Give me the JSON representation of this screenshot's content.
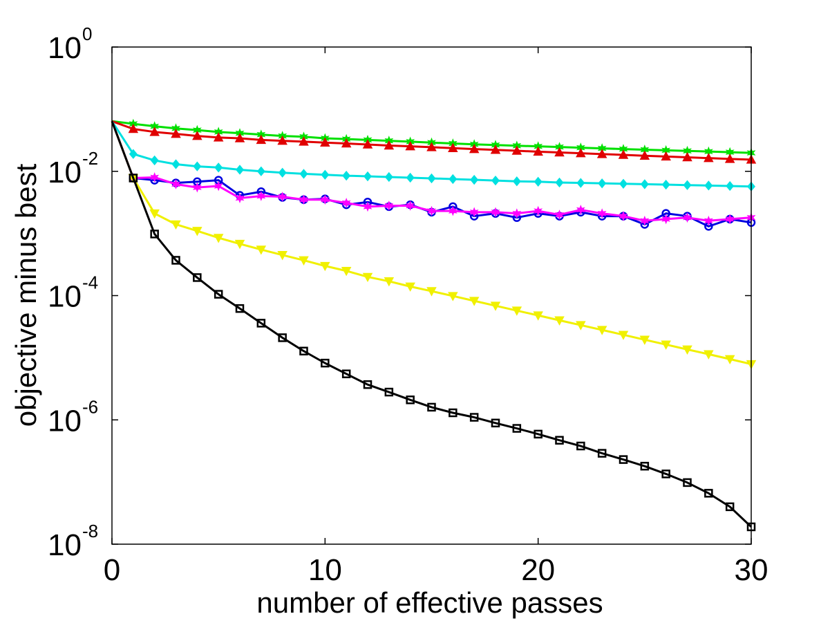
{
  "chart_data": {
    "type": "line",
    "title": "",
    "xlabel": "number of effective passes",
    "ylabel": "objective minus best",
    "xlim": [
      0,
      30
    ],
    "ylim": [
      1e-08,
      1
    ],
    "yscale": "log",
    "x_ticks": [
      0,
      10,
      20,
      30
    ],
    "y_ticks": [
      {
        "value": 1,
        "base": "10",
        "exp": "0"
      },
      {
        "value": 0.01,
        "base": "10",
        "exp": "-2"
      },
      {
        "value": 0.0001,
        "base": "10",
        "exp": "-4"
      },
      {
        "value": 1e-06,
        "base": "10",
        "exp": "-6"
      },
      {
        "value": 1e-08,
        "base": "10",
        "exp": "-8"
      }
    ],
    "grid": false,
    "series": [
      {
        "name": "green-star",
        "color": "#00e000",
        "marker": "star",
        "x": [
          0,
          1,
          2,
          3,
          4,
          5,
          6,
          7,
          8,
          9,
          10,
          11,
          12,
          13,
          14,
          15,
          16,
          17,
          18,
          19,
          20,
          21,
          22,
          23,
          24,
          25,
          26,
          27,
          28,
          29,
          30
        ],
        "values": [
          0.064,
          0.058,
          0.053,
          0.049,
          0.046,
          0.043,
          0.041,
          0.039,
          0.037,
          0.036,
          0.034,
          0.033,
          0.032,
          0.031,
          0.03,
          0.029,
          0.028,
          0.0272,
          0.0265,
          0.0258,
          0.0252,
          0.0246,
          0.024,
          0.0234,
          0.0228,
          0.0223,
          0.0218,
          0.0213,
          0.0208,
          0.0203,
          0.0198
        ]
      },
      {
        "name": "red-triangle",
        "color": "#e00000",
        "marker": "triangle-up",
        "x": [
          0,
          1,
          2,
          3,
          4,
          5,
          6,
          7,
          8,
          9,
          10,
          11,
          12,
          13,
          14,
          15,
          16,
          17,
          18,
          19,
          20,
          21,
          22,
          23,
          24,
          25,
          26,
          27,
          28,
          29,
          30
        ],
        "values": [
          0.064,
          0.048,
          0.043,
          0.04,
          0.037,
          0.035,
          0.034,
          0.032,
          0.031,
          0.03,
          0.029,
          0.028,
          0.027,
          0.026,
          0.0252,
          0.0244,
          0.0236,
          0.0228,
          0.0221,
          0.0214,
          0.0207,
          0.0201,
          0.0195,
          0.0189,
          0.0184,
          0.0178,
          0.0173,
          0.0168,
          0.0163,
          0.0158,
          0.0154
        ]
      },
      {
        "name": "cyan-diamond",
        "color": "#00e0e0",
        "marker": "diamond",
        "x": [
          0,
          1,
          2,
          3,
          4,
          5,
          6,
          7,
          8,
          9,
          10,
          11,
          12,
          13,
          14,
          15,
          16,
          17,
          18,
          19,
          20,
          21,
          22,
          23,
          24,
          25,
          26,
          27,
          28,
          29,
          30
        ],
        "values": [
          0.064,
          0.019,
          0.015,
          0.013,
          0.012,
          0.0115,
          0.0106,
          0.01,
          0.0095,
          0.0091,
          0.0088,
          0.0085,
          0.0083,
          0.0081,
          0.0079,
          0.0077,
          0.0075,
          0.0073,
          0.0071,
          0.0069,
          0.0068,
          0.0066,
          0.0065,
          0.0064,
          0.0063,
          0.0062,
          0.0061,
          0.006,
          0.0059,
          0.0058,
          0.0057
        ]
      },
      {
        "name": "blue-circle",
        "color": "#0000e0",
        "marker": "circle",
        "x": [
          0,
          1,
          2,
          3,
          4,
          5,
          6,
          7,
          8,
          9,
          10,
          11,
          12,
          13,
          14,
          15,
          16,
          17,
          18,
          19,
          20,
          21,
          22,
          23,
          24,
          25,
          26,
          27,
          28,
          29,
          30
        ],
        "values": [
          0.064,
          0.0078,
          0.0072,
          0.0065,
          0.0068,
          0.0072,
          0.0041,
          0.0047,
          0.0038,
          0.0035,
          0.0036,
          0.0029,
          0.0032,
          0.0027,
          0.0029,
          0.0022,
          0.0027,
          0.0019,
          0.0021,
          0.0018,
          0.0021,
          0.0019,
          0.0022,
          0.0019,
          0.0019,
          0.0014,
          0.0021,
          0.0019,
          0.0013,
          0.0017,
          0.0015
        ]
      },
      {
        "name": "magenta-star",
        "color": "#ff00ff",
        "marker": "star",
        "x": [
          0,
          1,
          2,
          3,
          4,
          5,
          6,
          7,
          8,
          9,
          10,
          11,
          12,
          13,
          14,
          15,
          16,
          17,
          18,
          19,
          20,
          21,
          22,
          23,
          24,
          25,
          26,
          27,
          28,
          29,
          30
        ],
        "values": [
          0.064,
          0.0078,
          0.008,
          0.0062,
          0.0055,
          0.0058,
          0.0037,
          0.004,
          0.0039,
          0.0035,
          0.0035,
          0.0031,
          0.0027,
          0.0028,
          0.0028,
          0.0023,
          0.0023,
          0.0022,
          0.0022,
          0.0021,
          0.0023,
          0.002,
          0.0024,
          0.0021,
          0.0019,
          0.0016,
          0.0017,
          0.0018,
          0.0016,
          0.0017,
          0.0018
        ]
      },
      {
        "name": "yellow-triangle",
        "color": "#f0f000",
        "marker": "triangle-down",
        "x": [
          0,
          1,
          2,
          3,
          4,
          5,
          6,
          7,
          8,
          9,
          10,
          11,
          12,
          13,
          14,
          15,
          16,
          17,
          18,
          19,
          20,
          21,
          22,
          23,
          24,
          25,
          26,
          27,
          28,
          29,
          30
        ],
        "values": [
          0.064,
          0.0078,
          0.0021,
          0.0014,
          0.0011,
          0.00085,
          0.00068,
          0.00055,
          0.00045,
          0.00037,
          0.0003,
          0.00025,
          0.0002,
          0.00017,
          0.00014,
          0.000118,
          9.85e-05,
          8.23e-05,
          6.87e-05,
          5.74e-05,
          4.8e-05,
          4e-05,
          3.35e-05,
          2.8e-05,
          2.34e-05,
          1.95e-05,
          1.63e-05,
          1.36e-05,
          1.14e-05,
          9.5e-06,
          7.9e-06
        ]
      },
      {
        "name": "black-square",
        "color": "#000000",
        "marker": "square",
        "x": [
          0,
          1,
          2,
          3,
          4,
          5,
          6,
          7,
          8,
          9,
          10,
          11,
          12,
          13,
          14,
          15,
          16,
          17,
          18,
          19,
          20,
          21,
          22,
          23,
          24,
          25,
          26,
          27,
          28,
          29,
          30
        ],
        "values": [
          0.064,
          0.0078,
          0.00098,
          0.00037,
          0.000195,
          0.000105,
          6.2e-05,
          3.6e-05,
          2.1e-05,
          1.28e-05,
          8.2e-06,
          5.5e-06,
          3.7e-06,
          2.8e-06,
          2.1e-06,
          1.6e-06,
          1.3e-06,
          1.1e-06,
          8.9e-07,
          7.3e-07,
          5.9e-07,
          4.7e-07,
          3.8e-07,
          2.9e-07,
          2.3e-07,
          1.8e-07,
          1.35e-07,
          9.8e-08,
          6.6e-08,
          4e-08,
          1.9e-08
        ]
      }
    ]
  }
}
